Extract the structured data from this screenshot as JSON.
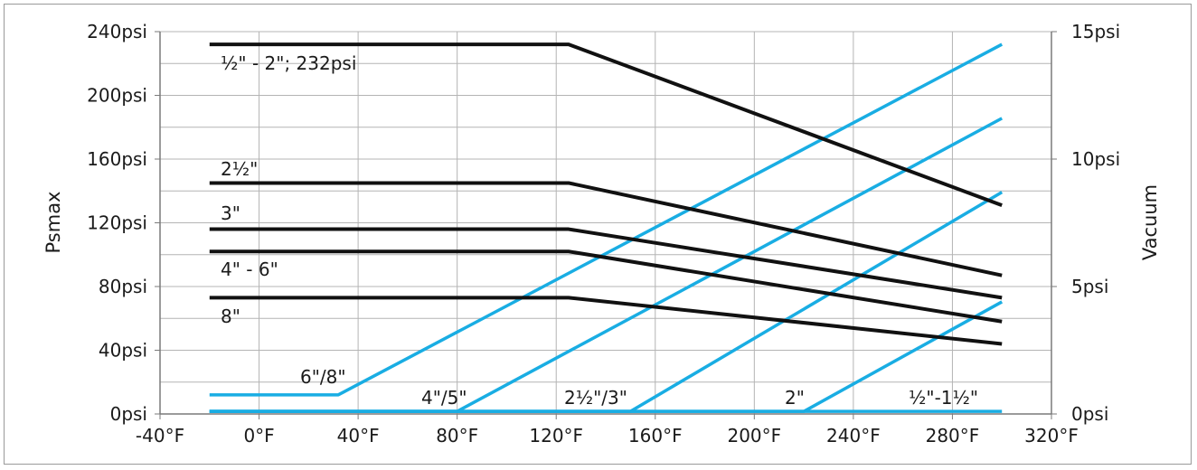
{
  "chart_data": {
    "type": "line",
    "xlabel": "",
    "ylabel": "Psmax",
    "y2label": "Vacuum",
    "xlim": [
      -40,
      320
    ],
    "ylim": [
      0,
      240
    ],
    "y2lim": [
      0,
      15
    ],
    "grid": true,
    "x_ticks": [
      "-40°F",
      "0°F",
      "40°F",
      "80°F",
      "120°F",
      "160°F",
      "200°F",
      "240°F",
      "280°F",
      "320°F"
    ],
    "y_ticks": [
      "0psi",
      "40psi",
      "80psi",
      "120psi",
      "160psi",
      "200psi",
      "240psi"
    ],
    "y2_ticks": [
      "0psi",
      "5psi",
      "10psi",
      "15psi"
    ],
    "colors": {
      "pressure": "#111111",
      "vacuum": "#19ade3",
      "grid": "#b4b4b4",
      "axis": "#7a7a7a"
    },
    "pressure_series": [
      {
        "label": "½\" - 2\"; 232psi",
        "points": [
          [
            -20,
            232
          ],
          [
            125,
            232
          ],
          [
            300,
            131
          ]
        ]
      },
      {
        "label": "2½\"",
        "points": [
          [
            -20,
            145
          ],
          [
            125,
            145
          ],
          [
            300,
            87
          ]
        ]
      },
      {
        "label": "3\"",
        "points": [
          [
            -20,
            116
          ],
          [
            125,
            116
          ],
          [
            300,
            73
          ]
        ]
      },
      {
        "label": "4\" - 6\"",
        "points": [
          [
            -20,
            102
          ],
          [
            125,
            102
          ],
          [
            300,
            58
          ]
        ]
      },
      {
        "label": "8\"",
        "points": [
          [
            -20,
            73
          ],
          [
            125,
            73
          ],
          [
            300,
            44
          ]
        ]
      }
    ],
    "vacuum_series": [
      {
        "label": "6\"/8\"",
        "points": [
          [
            -20,
            0.75
          ],
          [
            32,
            0.75
          ],
          [
            300,
            14.5
          ]
        ]
      },
      {
        "label": "4\"/5\"",
        "points": [
          [
            -20,
            0.1
          ],
          [
            80,
            0.1
          ],
          [
            300,
            11.6
          ]
        ]
      },
      {
        "label": "2½\"/3\"",
        "points": [
          [
            -20,
            0.1
          ],
          [
            150,
            0.1
          ],
          [
            300,
            8.7
          ]
        ]
      },
      {
        "label": "2\"",
        "points": [
          [
            -20,
            0.1
          ],
          [
            220,
            0.1
          ],
          [
            300,
            4.4
          ]
        ]
      },
      {
        "label": "½\"-1½\"",
        "points": [
          [
            -20,
            0.1
          ],
          [
            300,
            0.1
          ]
        ]
      }
    ]
  }
}
